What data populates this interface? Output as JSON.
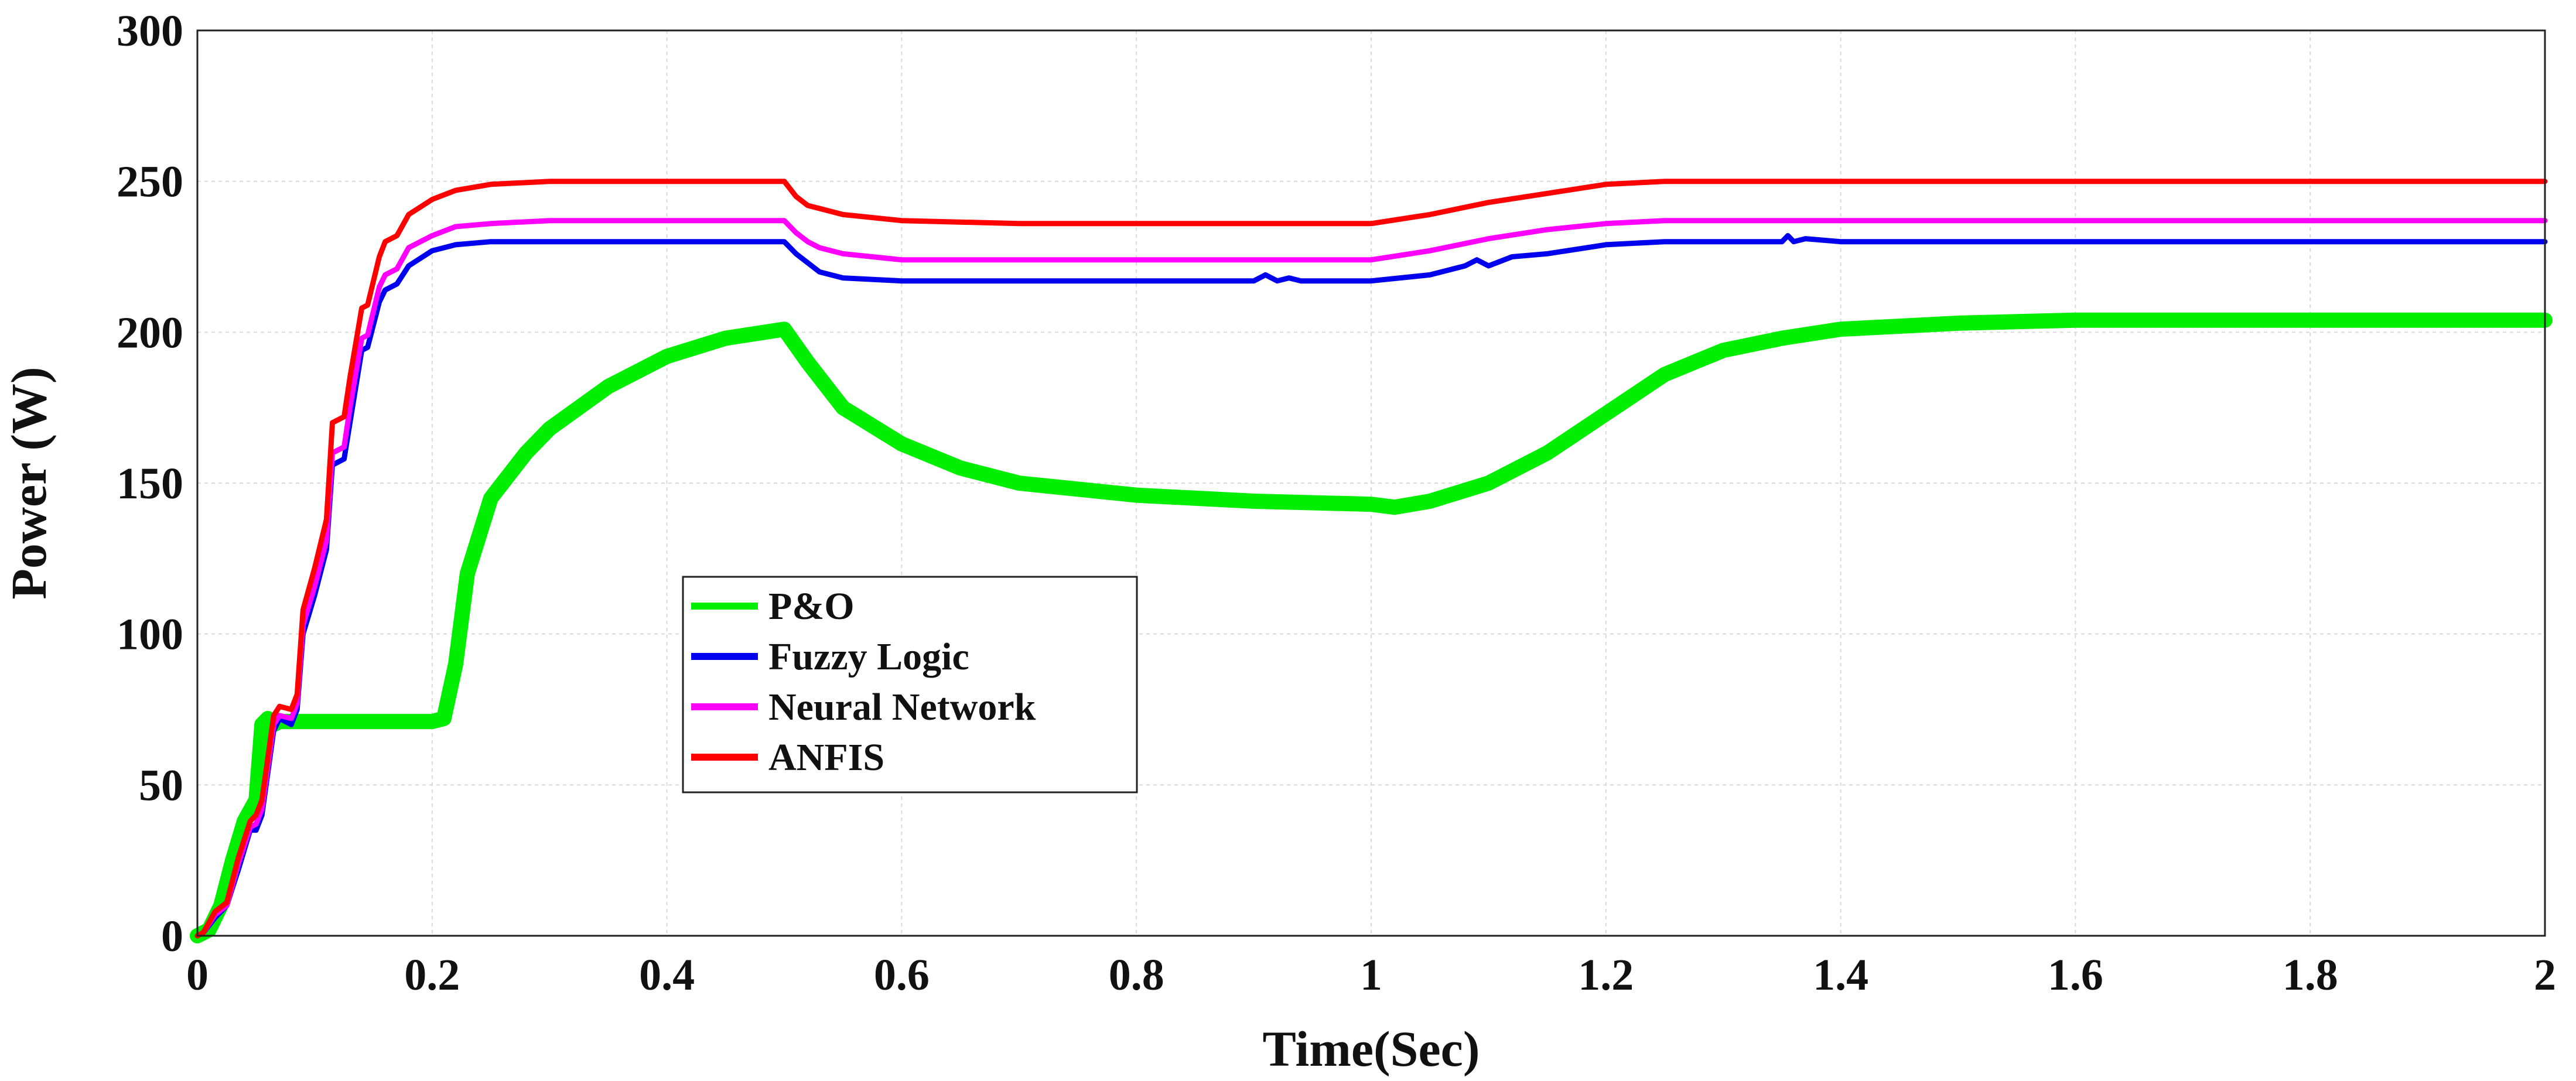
{
  "chart_data": {
    "type": "line",
    "title": "",
    "xlabel": "Time(Sec)",
    "ylabel": "Power (W)",
    "xlim": [
      0,
      2
    ],
    "ylim": [
      0,
      300
    ],
    "xticks": [
      0,
      0.2,
      0.4,
      0.6,
      0.8,
      1,
      1.2,
      1.4,
      1.6,
      1.8,
      2
    ],
    "xtick_labels": [
      "0",
      "0.2",
      "0.4",
      "0.6",
      "0.8",
      "1",
      "1.2",
      "1.4",
      "1.6",
      "1.8",
      "2"
    ],
    "yticks": [
      0,
      50,
      100,
      150,
      200,
      250,
      300
    ],
    "ytick_labels": [
      "0",
      "50",
      "100",
      "150",
      "200",
      "250",
      "300"
    ],
    "grid": true,
    "legend_position": "center-left",
    "series": [
      {
        "name": "P&O",
        "color": "#00ee00",
        "noisy": true,
        "x": [
          0,
          0.01,
          0.02,
          0.03,
          0.04,
          0.05,
          0.055,
          0.06,
          0.065,
          0.07,
          0.08,
          0.1,
          0.15,
          0.2,
          0.21,
          0.22,
          0.23,
          0.25,
          0.28,
          0.3,
          0.35,
          0.4,
          0.45,
          0.5,
          0.52,
          0.55,
          0.6,
          0.65,
          0.7,
          0.8,
          0.9,
          1.0,
          1.02,
          1.05,
          1.1,
          1.15,
          1.2,
          1.25,
          1.3,
          1.35,
          1.4,
          1.5,
          1.6,
          1.7,
          1.8,
          1.9,
          2.0
        ],
        "y": [
          0,
          2,
          10,
          25,
          38,
          45,
          70,
          72,
          70,
          71,
          71,
          71,
          71,
          71,
          72,
          90,
          120,
          145,
          160,
          168,
          182,
          192,
          198,
          201,
          190,
          175,
          163,
          155,
          150,
          146,
          144,
          143,
          142,
          144,
          150,
          160,
          173,
          186,
          194,
          198,
          201,
          203,
          204,
          204,
          204,
          204,
          204
        ]
      },
      {
        "name": "Fuzzy Logic",
        "color": "#0000ee",
        "noisy": false,
        "x": [
          0,
          0.005,
          0.015,
          0.025,
          0.035,
          0.045,
          0.05,
          0.055,
          0.065,
          0.07,
          0.08,
          0.085,
          0.09,
          0.1,
          0.11,
          0.115,
          0.125,
          0.13,
          0.14,
          0.145,
          0.155,
          0.16,
          0.17,
          0.18,
          0.2,
          0.22,
          0.25,
          0.3,
          0.4,
          0.5,
          0.51,
          0.52,
          0.53,
          0.55,
          0.6,
          0.7,
          0.8,
          0.9,
          0.91,
          0.92,
          0.93,
          0.94,
          0.95,
          1.0,
          1.05,
          1.08,
          1.09,
          1.1,
          1.12,
          1.15,
          1.2,
          1.25,
          1.3,
          1.35,
          1.355,
          1.36,
          1.37,
          1.4,
          1.5,
          1.6,
          2.0
        ],
        "y": [
          0,
          1,
          6,
          10,
          22,
          35,
          35,
          40,
          68,
          72,
          70,
          75,
          100,
          113,
          128,
          156,
          158,
          170,
          194,
          195,
          210,
          214,
          216,
          222,
          227,
          229,
          230,
          230,
          230,
          230,
          226,
          223,
          220,
          218,
          217,
          217,
          217,
          217,
          219,
          217,
          218,
          217,
          217,
          217,
          219,
          222,
          224,
          222,
          225,
          226,
          229,
          230,
          230,
          230,
          232,
          230,
          231,
          230,
          230,
          230,
          230
        ]
      },
      {
        "name": "Neural Network",
        "color": "#ff00ff",
        "noisy": false,
        "x": [
          0,
          0.005,
          0.015,
          0.025,
          0.035,
          0.045,
          0.05,
          0.055,
          0.065,
          0.07,
          0.08,
          0.085,
          0.09,
          0.1,
          0.11,
          0.115,
          0.125,
          0.13,
          0.14,
          0.145,
          0.155,
          0.16,
          0.17,
          0.18,
          0.2,
          0.22,
          0.25,
          0.3,
          0.4,
          0.5,
          0.51,
          0.52,
          0.53,
          0.55,
          0.6,
          0.7,
          0.8,
          0.9,
          1.0,
          1.05,
          1.1,
          1.15,
          1.2,
          1.25,
          1.3,
          2.0
        ],
        "y": [
          0,
          1,
          7,
          10,
          24,
          36,
          37,
          42,
          70,
          73,
          72,
          77,
          103,
          116,
          131,
          160,
          162,
          175,
          198,
          199,
          215,
          219,
          221,
          228,
          232,
          235,
          236,
          237,
          237,
          237,
          233,
          230,
          228,
          226,
          224,
          224,
          224,
          224,
          224,
          227,
          231,
          234,
          236,
          237,
          237,
          237
        ]
      },
      {
        "name": "ANFIS",
        "color": "#ff0000",
        "noisy": false,
        "x": [
          0,
          0.005,
          0.015,
          0.025,
          0.035,
          0.045,
          0.05,
          0.055,
          0.065,
          0.07,
          0.08,
          0.085,
          0.09,
          0.1,
          0.11,
          0.115,
          0.125,
          0.13,
          0.14,
          0.145,
          0.155,
          0.16,
          0.17,
          0.18,
          0.2,
          0.22,
          0.25,
          0.3,
          0.4,
          0.5,
          0.51,
          0.52,
          0.53,
          0.55,
          0.6,
          0.7,
          0.8,
          0.9,
          1.0,
          1.05,
          1.1,
          1.15,
          1.2,
          1.25,
          1.3,
          2.0
        ],
        "y": [
          0,
          1,
          8,
          11,
          26,
          38,
          40,
          45,
          73,
          76,
          75,
          80,
          108,
          122,
          138,
          170,
          172,
          185,
          208,
          209,
          225,
          230,
          232,
          239,
          244,
          247,
          249,
          250,
          250,
          250,
          245,
          242,
          241,
          239,
          237,
          236,
          236,
          236,
          236,
          239,
          243,
          246,
          249,
          250,
          250,
          250
        ]
      }
    ]
  }
}
